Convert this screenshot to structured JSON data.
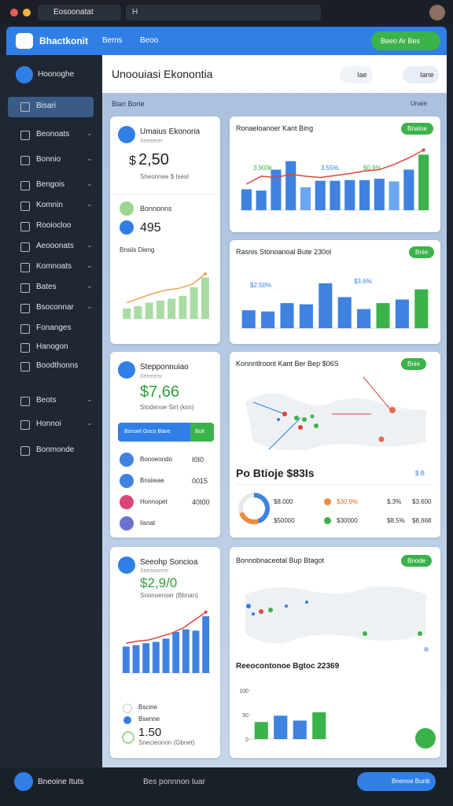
{
  "browser": {
    "tab": "Eosoonatat",
    "address": "H"
  },
  "header": {
    "logo": "Bhactkonit",
    "nav": [
      "Bems",
      "Beoo"
    ],
    "button": "Beeo Ar Bes"
  },
  "sidebar": {
    "profile": "Hoonoghe",
    "items": [
      "Bisari",
      "Beonoats",
      "Bonnio",
      "Bengois",
      "Komnin",
      "Rooiocloo",
      "Aeooonats",
      "Komnoats",
      "Bates",
      "Bsoconnar",
      "Fonanges",
      "Hanogon",
      "Boodthonns",
      "Beots",
      "Honnoi",
      "Bonmonde"
    ]
  },
  "main": {
    "title": "Unoouiasi Ekonontia",
    "search": [
      "Iae",
      "Iane"
    ],
    "section": "Bian Borie",
    "section_action": "Unaie"
  },
  "cards": [
    {
      "title": "Umaius Ekonoria",
      "subtitle": "Seeeerer",
      "currency": "$",
      "value": "2,50",
      "note": "Sheonnee $ Isesl",
      "stat_label": "Bonnonns",
      "stat_value": "495",
      "chart_title": "Bnsiis Dieng",
      "chart": {
        "ylim": [
          0,
          100
        ],
        "bars": [
          18,
          22,
          28,
          32,
          35,
          40,
          55,
          72
        ],
        "bar_color": "#a9dca2",
        "line": [
          28,
          36,
          44,
          50,
          53,
          60,
          78
        ],
        "line_color": "#f0a050"
      }
    },
    {
      "title": "Ronaeloanoer Kant Bing",
      "badge": "Bnaloe",
      "labels": [
        "3.900k",
        "3.55%",
        "$0.9%"
      ],
      "chart": {
        "ylim": [
          0,
          100
        ],
        "bars": [
          32,
          30,
          62,
          75,
          35,
          45,
          45,
          46,
          46,
          48,
          44,
          62,
          85
        ],
        "bar_color": "#3f82e0",
        "bar_colors": [
          "#3f82e0",
          "#3f82e0",
          "#3f82e0",
          "#3f82e0",
          "#6ba6f0",
          "#3f82e0",
          "#3f82e0",
          "#3f82e0",
          "#3f82e0",
          "#3f82e0",
          "#6ba6f0",
          "#3f82e0",
          "#3cb24a"
        ],
        "line": [
          40,
          52,
          50,
          55,
          52,
          50,
          53,
          56,
          60,
          62,
          70,
          80,
          92
        ],
        "line_color": "#d9453a"
      }
    },
    {
      "title": "Rasnis Stonoanoal Bute 230ol",
      "badge": "Bnie",
      "labels": [
        "$2.50%",
        "$3.6%"
      ],
      "chart": {
        "ylim": [
          0,
          100
        ],
        "bars": [
          30,
          28,
          42,
          40,
          75,
          52,
          32,
          42,
          48,
          65
        ],
        "bar_color": "#3f82e0",
        "bar_colors": [
          "#3f82e0",
          "#3f82e0",
          "#3f82e0",
          "#3f82e0",
          "#3f82e0",
          "#3f82e0",
          "#3f82e0",
          "#3cb24a",
          "#3f82e0",
          "#3cb24a"
        ]
      }
    },
    {
      "title": "Stepponnuiao",
      "subtitle": "Seeeersr",
      "value": "$7,66",
      "note": "Stodenoe Sirt (ksn)",
      "buttons": [
        "Bonoel Goco Biare",
        "Boit"
      ],
      "rows": [
        {
          "label": "Bonoeondo",
          "value": "I0I0",
          "color": "#3f82e0"
        },
        {
          "label": "Bnsiieae",
          "value": "0015",
          "color": "#3f82e0"
        },
        {
          "label": "Honnopet",
          "value": "40I00",
          "color": "#d9457a"
        },
        {
          "label": "Iisnat",
          "color": "#6a72d0"
        }
      ]
    },
    {
      "title": "Konnntlroont Kant Ber Bep $06S",
      "badge": "Bnie",
      "subtitle": "Po Btioje $83Is",
      "page": "$ B",
      "donut": [
        {
          "value": 45,
          "color": "#3f82e0"
        },
        {
          "value": 25,
          "color": "#f08a3c"
        },
        {
          "value": 30,
          "color": "#e8e8e8"
        }
      ],
      "legend": [
        {
          "cells": [
            "$8.000",
            "$30.9%",
            "$.3%",
            "$3.600"
          ],
          "color": "#f08a3c"
        },
        {
          "cells": [
            "$50000",
            "$30000",
            "$8.5%",
            "$8,668"
          ],
          "color": "#3cb24a"
        }
      ]
    },
    {
      "title": "Seeohp Soncioa",
      "subtitle": "Seeooonrer",
      "value": "$2,9/0",
      "note": "Snonoenser (Bbnan)",
      "chart": {
        "ylim": [
          0,
          100
        ],
        "bars": [
          40,
          42,
          45,
          47,
          52,
          62,
          66,
          64,
          86
        ],
        "bar_color": "#3f82e0",
        "line": [
          45,
          48,
          50,
          55,
          60,
          68,
          80,
          92
        ],
        "line_color": "#d9453a"
      },
      "rows": [
        "Bscine",
        "Bsenne"
      ],
      "value2": "1.50",
      "note2": "Snecieonon (Gbnet)"
    },
    {
      "title": "Bonnobnaceotal Bup Btagot",
      "badge": "Bnode",
      "subtitle": "Reeocontonoe Bgtoc 22369",
      "chart": {
        "ylim": [
          0,
          100
        ],
        "yticks": [
          0,
          50,
          100
        ],
        "bars": [
          35,
          48,
          38,
          55
        ],
        "bar_color": "#3cb24a",
        "bar_colors": [
          "#3cb24a",
          "#3f82e0",
          "#3f82e0",
          "#3cb24a"
        ]
      }
    }
  ],
  "footer": {
    "label": "Bneoine Ituts",
    "search": "Bes ponnnon Iuar",
    "button": "Bnenoe Bunb"
  }
}
